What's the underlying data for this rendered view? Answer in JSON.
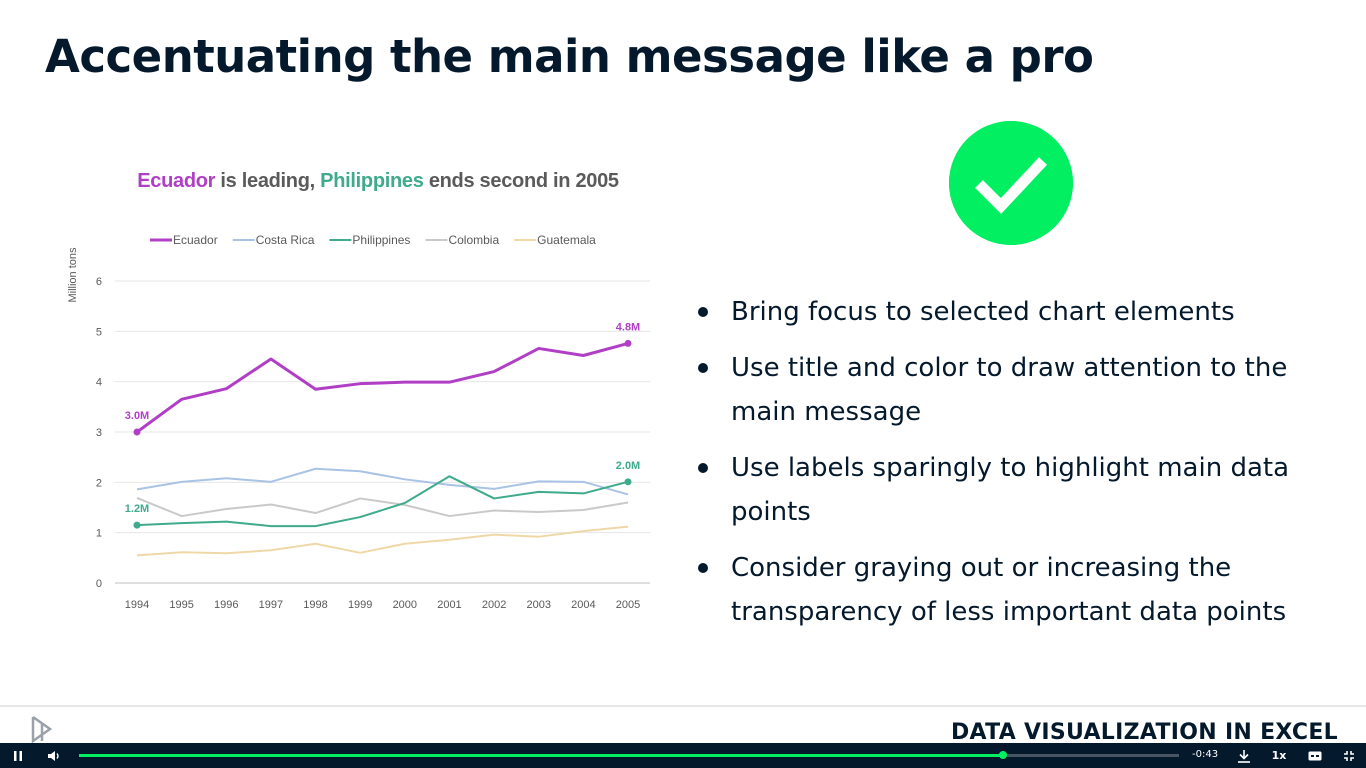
{
  "slide": {
    "title": "Accentuating the main message like a pro",
    "bullets": [
      "Bring focus to selected chart elements",
      "Use title and color to draw attention to the main message",
      "Use labels sparingly to highlight main data points",
      "Consider graying out or increasing the transparency of less important data points"
    ],
    "check_icon": "checkmark-circle-icon",
    "check_color": "#03ef62"
  },
  "chart_title": {
    "part1": "Ecuador",
    "part2": " is leading, ",
    "part3": "Philippines",
    "part4": " ends second in 2005",
    "color1": "#b03fc6",
    "color3": "#3faa8c"
  },
  "chart_data": {
    "type": "line",
    "ylabel": "Million tons",
    "xlabel": "",
    "ylim": [
      0,
      6
    ],
    "yticks": [
      0,
      1,
      2,
      3,
      4,
      5,
      6
    ],
    "grid": true,
    "legend_position": "top",
    "x": [
      "1994",
      "1995",
      "1996",
      "1997",
      "1998",
      "1999",
      "2000",
      "2001",
      "2002",
      "2003",
      "2004",
      "2005"
    ],
    "series": [
      {
        "name": "Ecuador",
        "color": "#b03fc6",
        "emphasis": true,
        "values": [
          3.0,
          3.65,
          3.86,
          4.45,
          3.85,
          3.96,
          3.99,
          3.99,
          4.2,
          4.66,
          4.52,
          4.76
        ]
      },
      {
        "name": "Costa Rica",
        "color": "#a9c3e5",
        "emphasis": false,
        "values": [
          1.86,
          2.01,
          2.08,
          2.01,
          2.27,
          2.22,
          2.06,
          1.95,
          1.87,
          2.02,
          2.01,
          1.76
        ]
      },
      {
        "name": "Philippines",
        "color": "#3faa8c",
        "emphasis": true,
        "values": [
          1.15,
          1.19,
          1.22,
          1.13,
          1.13,
          1.31,
          1.59,
          2.12,
          1.68,
          1.81,
          1.78,
          2.01
        ]
      },
      {
        "name": "Colombia",
        "color": "#c9c9c9",
        "emphasis": false,
        "values": [
          1.69,
          1.33,
          1.47,
          1.56,
          1.39,
          1.68,
          1.55,
          1.33,
          1.44,
          1.41,
          1.45,
          1.6
        ]
      },
      {
        "name": "Guatemala",
        "color": "#efd8a8",
        "emphasis": false,
        "values": [
          0.55,
          0.61,
          0.59,
          0.65,
          0.78,
          0.6,
          0.78,
          0.86,
          0.96,
          0.92,
          1.03,
          1.12
        ]
      }
    ],
    "annotations": [
      {
        "series": "Ecuador",
        "x": "1994",
        "label": "3.0M"
      },
      {
        "series": "Ecuador",
        "x": "2005",
        "label": "4.8M"
      },
      {
        "series": "Philippines",
        "x": "1994",
        "label": "1.2M"
      },
      {
        "series": "Philippines",
        "x": "2005",
        "label": "2.0M"
      }
    ]
  },
  "footer": {
    "logo_text": "datacamp",
    "logo_icon": "datacamp-logo-icon",
    "course_title": "DATA VISUALIZATION IN EXCEL"
  },
  "player": {
    "time_remaining": "-0:43",
    "speed": "1x",
    "progress": 0.84,
    "icons": [
      "pause-icon",
      "volume-icon",
      "download-icon",
      "captions-icon",
      "fullscreen-exit-icon"
    ],
    "accent_color": "#03ef62"
  }
}
